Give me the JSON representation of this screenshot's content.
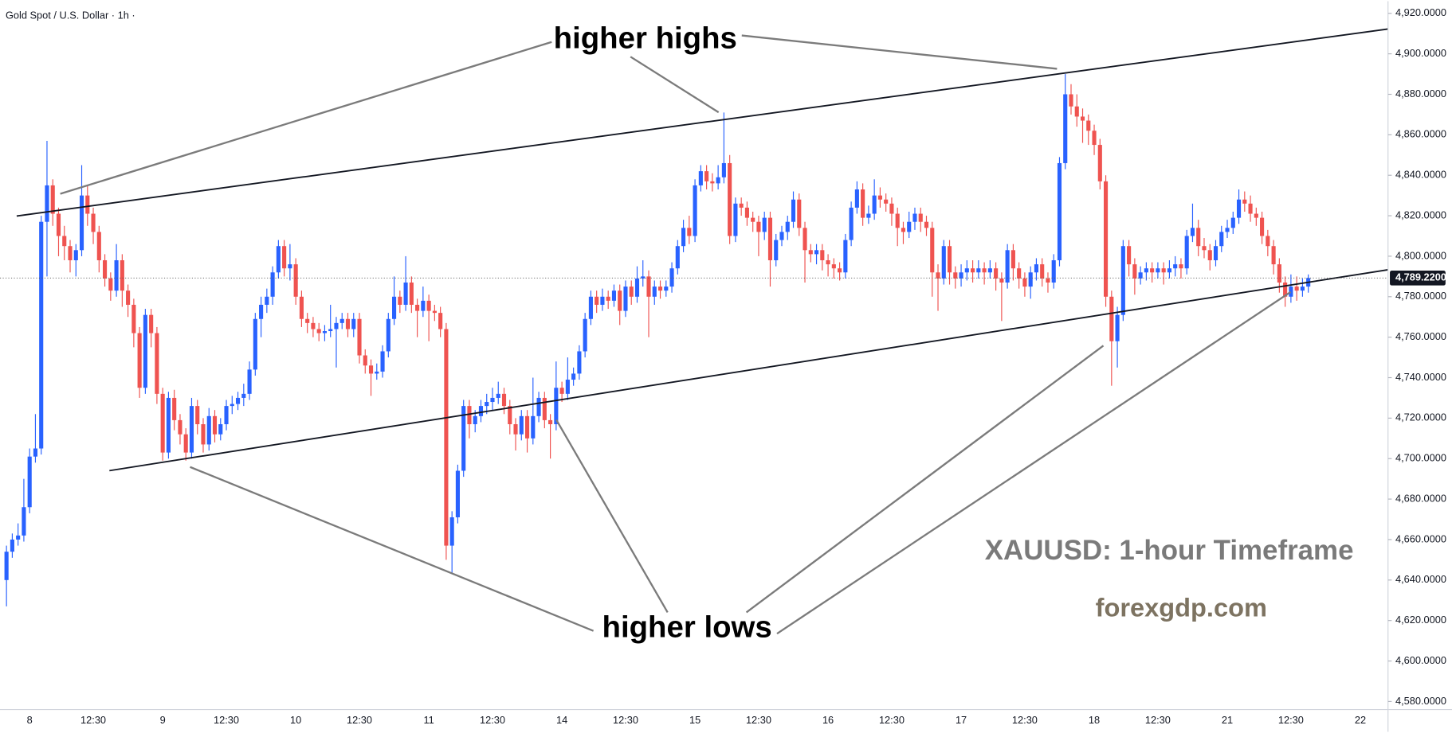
{
  "chart_data": {
    "type": "candlestick",
    "title": "Gold Spot / U.S. Dollar · 1h ·",
    "annotations": [
      "higher highs",
      "higher lows",
      "XAUUSD: 1-hour Timeframe",
      "forexgdp.com"
    ],
    "up_color": "#2962ff",
    "down_color": "#ef5350",
    "grid": false,
    "ylim": [
      4576,
      4926
    ],
    "yticks": [
      {
        "value": 4580,
        "label": "4,580.0000"
      },
      {
        "value": 4600,
        "label": "4,600.0000"
      },
      {
        "value": 4620,
        "label": "4,620.0000"
      },
      {
        "value": 4640,
        "label": "4,640.0000"
      },
      {
        "value": 4660,
        "label": "4,660.0000"
      },
      {
        "value": 4680,
        "label": "4,680.0000"
      },
      {
        "value": 4700,
        "label": "4,700.0000"
      },
      {
        "value": 4720,
        "label": "4,720.0000"
      },
      {
        "value": 4740,
        "label": "4,740.0000"
      },
      {
        "value": 4760,
        "label": "4,760.0000"
      },
      {
        "value": 4780,
        "label": "4,780.0000"
      },
      {
        "value": 4800,
        "label": "4,800.0000"
      },
      {
        "value": 4820,
        "label": "4,820.0000"
      },
      {
        "value": 4840,
        "label": "4,840.0000"
      },
      {
        "value": 4860,
        "label": "4,860.0000"
      },
      {
        "value": 4880,
        "label": "4,880.0000"
      },
      {
        "value": 4900,
        "label": "4,900.0000"
      },
      {
        "value": 4920,
        "label": "4,920.0000"
      }
    ],
    "last_price": {
      "value": 4789.22,
      "label": "4,789.2200"
    },
    "categories": [
      null,
      null,
      null,
      null,
      "8",
      null,
      null,
      null,
      null,
      null,
      null,
      null,
      null,
      null,
      null,
      "12:30",
      null,
      null,
      null,
      null,
      null,
      null,
      null,
      null,
      null,
      null,
      null,
      "9",
      null,
      null,
      null,
      null,
      null,
      null,
      null,
      null,
      null,
      null,
      "12:30",
      null,
      null,
      null,
      null,
      null,
      null,
      null,
      null,
      null,
      null,
      null,
      "10",
      null,
      null,
      null,
      null,
      null,
      null,
      null,
      null,
      null,
      null,
      "12:30",
      null,
      null,
      null,
      null,
      null,
      null,
      null,
      null,
      null,
      null,
      null,
      "11",
      null,
      null,
      null,
      null,
      null,
      null,
      null,
      null,
      null,
      null,
      "12:30",
      null,
      null,
      null,
      null,
      null,
      null,
      null,
      null,
      null,
      null,
      null,
      "14",
      null,
      null,
      null,
      null,
      null,
      null,
      null,
      null,
      null,
      null,
      "12:30",
      null,
      null,
      null,
      null,
      null,
      null,
      null,
      null,
      null,
      null,
      null,
      "15",
      null,
      null,
      null,
      null,
      null,
      null,
      null,
      null,
      null,
      null,
      "12:30",
      null,
      null,
      null,
      null,
      null,
      null,
      null,
      null,
      null,
      null,
      null,
      "16",
      null,
      null,
      null,
      null,
      null,
      null,
      null,
      null,
      null,
      null,
      "12:30",
      null,
      null,
      null,
      null,
      null,
      null,
      null,
      null,
      null,
      null,
      null,
      "17",
      null,
      null,
      null,
      null,
      null,
      null,
      null,
      null,
      null,
      null,
      "12:30",
      null,
      null,
      null,
      null,
      null,
      null,
      null,
      null,
      null,
      null,
      null,
      "18",
      null,
      null,
      null,
      null,
      null,
      null,
      null,
      null,
      null,
      null,
      "12:30",
      null,
      null,
      null,
      null,
      null,
      null,
      null,
      null,
      null,
      null,
      null,
      "21",
      null,
      null,
      null,
      null,
      null,
      null,
      null,
      null,
      null,
      null,
      "12:30",
      null,
      null,
      null,
      null,
      null,
      null,
      null,
      null,
      null,
      null,
      null,
      "22"
    ],
    "open": [
      4640,
      4654,
      4660,
      4662,
      4676,
      4701,
      4705,
      4817,
      4835,
      4821,
      4810,
      4805,
      4798,
      4803,
      4830,
      4821,
      4812,
      4798,
      4789,
      4783,
      4798,
      4783,
      4776,
      4762,
      4735,
      4771,
      4762,
      4732,
      4703,
      4730,
      4719,
      4712,
      4703,
      4726,
      4717,
      4707,
      4721,
      4712,
      4717,
      4726,
      4727,
      4730,
      4732,
      4744,
      4769,
      4776,
      4780,
      4792,
      4805,
      4794,
      4796,
      4780,
      4769,
      4767,
      4764,
      4762,
      4763,
      4764,
      4767,
      4769,
      4764,
      4769,
      4751,
      4746,
      4742,
      4743,
      4753,
      4769,
      4780,
      4776,
      4787,
      4776,
      4773,
      4778,
      4773,
      4772,
      4764,
      4657,
      4671,
      4694,
      4726,
      4717,
      4721,
      4726,
      4728,
      4730,
      4732,
      4726,
      4717,
      4712,
      4721,
      4710,
      4721,
      4730,
      4719,
      4717,
      4735,
      4732,
      4739,
      4742,
      4753,
      4769,
      4780,
      4776,
      4780,
      4778,
      4783,
      4773,
      4785,
      4780,
      4789,
      4790,
      4780,
      4785,
      4783,
      4785,
      4794,
      4805,
      4814,
      4810,
      4835,
      4842,
      4837,
      4836,
      4839,
      4846,
      4810,
      4826,
      4824,
      4819,
      4817,
      4812,
      4819,
      4798,
      4808,
      4812,
      4817,
      4828,
      4814,
      4803,
      4801,
      4803,
      4798,
      4796,
      4794,
      4792,
      4808,
      4824,
      4833,
      4819,
      4821,
      4830,
      4828,
      4826,
      4821,
      4814,
      4812,
      4817,
      4821,
      4817,
      4814,
      4792,
      4789,
      4805,
      4792,
      4789,
      4792,
      4794,
      4792,
      4794,
      4792,
      4794,
      4789,
      4787,
      4803,
      4794,
      4789,
      4785,
      4792,
      4796,
      4789,
      4787,
      4798,
      4846,
      4880,
      4874,
      4869,
      4867,
      4862,
      4855,
      4837,
      4780,
      4758,
      4771,
      4805,
      4796,
      4789,
      4792,
      4794,
      4792,
      4794,
      4792,
      4794,
      4796,
      4794,
      4810,
      4814,
      4805,
      4803,
      4798,
      4805,
      4812,
      4814,
      4819,
      4828,
      4826,
      4821,
      4819,
      4810,
      4805,
      4796,
      4787,
      4780,
      4785,
      4783,
      4785,
      null,
      null,
      null,
      null,
      null,
      null,
      null,
      null,
      null
    ],
    "high": [
      4657,
      4663,
      4668,
      4690,
      4705,
      4722,
      4820,
      4857,
      4838,
      4824,
      4815,
      4808,
      4806,
      4845,
      4835,
      4824,
      4815,
      4801,
      4792,
      4806,
      4801,
      4786,
      4779,
      4765,
      4774,
      4774,
      4765,
      4735,
      4733,
      4734,
      4722,
      4715,
      4730,
      4729,
      4720,
      4725,
      4724,
      4720,
      4729,
      4731,
      4733,
      4737,
      4748,
      4772,
      4780,
      4784,
      4795,
      4808,
      4808,
      4806,
      4799,
      4783,
      4772,
      4770,
      4767,
      4766,
      4776,
      4770,
      4772,
      4772,
      4772,
      4772,
      4754,
      4749,
      4747,
      4756,
      4772,
      4790,
      4783,
      4800,
      4790,
      4779,
      4785,
      4781,
      4776,
      4775,
      4767,
      4674,
      4697,
      4729,
      4729,
      4724,
      4729,
      4732,
      4735,
      4738,
      4735,
      4729,
      4720,
      4724,
      4724,
      4740,
      4733,
      4733,
      4722,
      4748,
      4738,
      4750,
      4745,
      4756,
      4772,
      4783,
      4783,
      4784,
      4783,
      4786,
      4786,
      4788,
      4788,
      4795,
      4798,
      4793,
      4788,
      4788,
      4788,
      4797,
      4808,
      4818,
      4820,
      4838,
      4845,
      4845,
      4841,
      4845,
      4871,
      4850,
      4829,
      4829,
      4827,
      4822,
      4820,
      4822,
      4822,
      4811,
      4815,
      4820,
      4832,
      4831,
      4817,
      4806,
      4806,
      4806,
      4801,
      4799,
      4797,
      4811,
      4827,
      4837,
      4836,
      4825,
      4838,
      4834,
      4831,
      4829,
      4824,
      4817,
      4822,
      4824,
      4824,
      4820,
      4817,
      4796,
      4808,
      4808,
      4795,
      4796,
      4798,
      4798,
      4798,
      4797,
      4798,
      4797,
      4792,
      4806,
      4806,
      4797,
      4792,
      4795,
      4799,
      4799,
      4792,
      4801,
      4849,
      4890,
      4885,
      4880,
      4873,
      4870,
      4865,
      4858,
      4840,
      4783,
      4775,
      4808,
      4808,
      4799,
      4795,
      4797,
      4797,
      4797,
      4797,
      4798,
      4800,
      4799,
      4813,
      4826,
      4818,
      4809,
      4806,
      4808,
      4815,
      4818,
      4822,
      4833,
      4832,
      4830,
      4824,
      4822,
      4813,
      4808,
      4799,
      4790,
      4791,
      4790,
      4789,
      4791,
      null,
      null,
      null,
      null,
      null,
      null,
      null,
      null,
      null
    ],
    "low": [
      4627,
      4651,
      4657,
      4659,
      4673,
      4698,
      4702,
      4790,
      4815,
      4800,
      4798,
      4792,
      4790,
      4800,
      4815,
      4806,
      4792,
      4785,
      4778,
      4780,
      4775,
      4770,
      4755,
      4730,
      4732,
      4755,
      4727,
      4699,
      4700,
      4714,
      4707,
      4699,
      4700,
      4712,
      4703,
      4704,
      4708,
      4709,
      4714,
      4722,
      4724,
      4726,
      4729,
      4741,
      4760,
      4772,
      4776,
      4789,
      4790,
      4788,
      4776,
      4765,
      4762,
      4760,
      4758,
      4758,
      4760,
      4745,
      4764,
      4760,
      4760,
      4747,
      4742,
      4731,
      4739,
      4740,
      4750,
      4766,
      4772,
      4773,
      4772,
      4760,
      4770,
      4758,
      4768,
      4760,
      4650,
      4643,
      4668,
      4691,
      4710,
      4713,
      4718,
      4722,
      4724,
      4727,
      4722,
      4712,
      4704,
      4709,
      4703,
      4707,
      4718,
      4715,
      4700,
      4714,
      4728,
      4729,
      4736,
      4739,
      4750,
      4766,
      4772,
      4773,
      4774,
      4775,
      4766,
      4770,
      4776,
      4777,
      4785,
      4760,
      4776,
      4779,
      4780,
      4782,
      4791,
      4802,
      4806,
      4807,
      4832,
      4833,
      4832,
      4833,
      4836,
      4806,
      4807,
      4820,
      4815,
      4812,
      4800,
      4808,
      4785,
      4795,
      4805,
      4808,
      4814,
      4810,
      4787,
      4797,
      4796,
      4793,
      4790,
      4789,
      4788,
      4789,
      4805,
      4821,
      4815,
      4816,
      4818,
      4824,
      4822,
      4815,
      4805,
      4806,
      4809,
      4813,
      4812,
      4810,
      4780,
      4773,
      4786,
      4786,
      4784,
      4785,
      4788,
      4787,
      4789,
      4786,
      4789,
      4783,
      4768,
      4784,
      4788,
      4784,
      4780,
      4779,
      4788,
      4785,
      4782,
      4784,
      4795,
      4843,
      4870,
      4864,
      4856,
      4855,
      4850,
      4833,
      4775,
      4736,
      4745,
      4768,
      4790,
      4781,
      4786,
      4788,
      4787,
      4789,
      4786,
      4789,
      4790,
      4789,
      4791,
      4807,
      4800,
      4799,
      4793,
      4795,
      4802,
      4809,
      4811,
      4816,
      4822,
      4817,
      4815,
      4806,
      4800,
      4791,
      4782,
      4775,
      4777,
      4778,
      4780,
      4782,
      null,
      null,
      null,
      null,
      null,
      null,
      null,
      null,
      null
    ],
    "close": [
      4654,
      4660,
      4662,
      4676,
      4701,
      4705,
      4817,
      4835,
      4821,
      4810,
      4805,
      4798,
      4803,
      4830,
      4821,
      4812,
      4798,
      4789,
      4783,
      4798,
      4783,
      4776,
      4762,
      4735,
      4771,
      4762,
      4732,
      4703,
      4730,
      4719,
      4712,
      4703,
      4726,
      4717,
      4707,
      4721,
      4712,
      4717,
      4726,
      4727,
      4730,
      4732,
      4744,
      4769,
      4776,
      4780,
      4792,
      4805,
      4794,
      4796,
      4780,
      4769,
      4767,
      4764,
      4762,
      4763,
      4764,
      4767,
      4769,
      4764,
      4769,
      4751,
      4746,
      4742,
      4743,
      4753,
      4769,
      4780,
      4776,
      4787,
      4776,
      4773,
      4778,
      4773,
      4772,
      4764,
      4657,
      4671,
      4694,
      4726,
      4717,
      4721,
      4726,
      4728,
      4730,
      4732,
      4726,
      4717,
      4712,
      4721,
      4710,
      4721,
      4730,
      4719,
      4717,
      4735,
      4732,
      4739,
      4742,
      4753,
      4769,
      4780,
      4776,
      4780,
      4778,
      4783,
      4773,
      4785,
      4780,
      4789,
      4790,
      4780,
      4785,
      4783,
      4785,
      4794,
      4805,
      4814,
      4810,
      4835,
      4842,
      4837,
      4836,
      4839,
      4846,
      4810,
      4826,
      4824,
      4819,
      4817,
      4812,
      4819,
      4798,
      4808,
      4812,
      4817,
      4828,
      4814,
      4803,
      4801,
      4803,
      4798,
      4796,
      4794,
      4792,
      4808,
      4824,
      4833,
      4819,
      4821,
      4830,
      4828,
      4826,
      4821,
      4814,
      4812,
      4817,
      4821,
      4817,
      4814,
      4792,
      4789,
      4805,
      4792,
      4789,
      4792,
      4794,
      4792,
      4794,
      4792,
      4794,
      4789,
      4787,
      4803,
      4794,
      4789,
      4785,
      4792,
      4796,
      4789,
      4787,
      4798,
      4846,
      4880,
      4874,
      4869,
      4867,
      4862,
      4855,
      4837,
      4780,
      4758,
      4771,
      4805,
      4796,
      4789,
      4792,
      4794,
      4792,
      4794,
      4792,
      4794,
      4796,
      4794,
      4810,
      4814,
      4805,
      4803,
      4798,
      4805,
      4812,
      4814,
      4819,
      4828,
      4826,
      4821,
      4819,
      4810,
      4805,
      4796,
      4787,
      4780,
      4785,
      4783,
      4785,
      4789.22,
      null,
      null,
      null,
      null,
      null,
      null,
      null,
      null,
      null
    ]
  }
}
